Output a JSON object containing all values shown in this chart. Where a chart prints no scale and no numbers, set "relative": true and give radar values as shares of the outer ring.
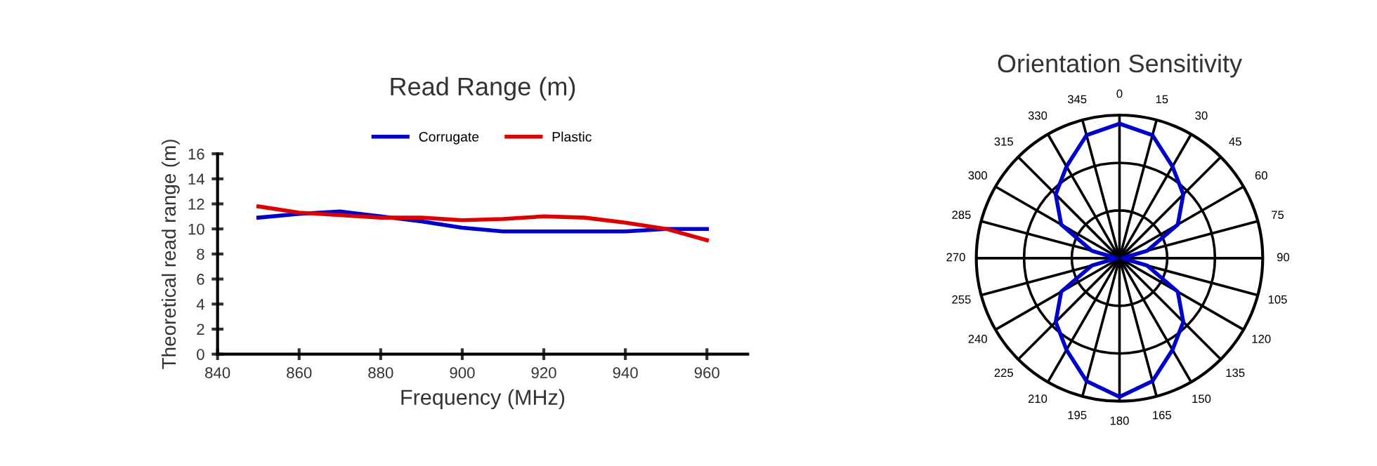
{
  "chart_data": [
    {
      "type": "line",
      "title": "Read Range (m)",
      "xlabel": "Frequency (MHz)",
      "ylabel": "Theoretical read range (m)",
      "x": [
        850,
        860,
        870,
        880,
        890,
        900,
        910,
        920,
        930,
        940,
        950,
        960
      ],
      "series": [
        {
          "name": "Corrugate",
          "color": "#0000cc",
          "values": [
            10.9,
            11.2,
            11.4,
            11.0,
            10.6,
            10.1,
            9.8,
            9.8,
            9.8,
            9.8,
            10.0,
            10.0
          ]
        },
        {
          "name": "Plastic",
          "color": "#dd0000",
          "values": [
            11.8,
            11.3,
            11.1,
            10.9,
            10.9,
            10.7,
            10.8,
            11.0,
            10.9,
            10.5,
            10.0,
            9.1
          ]
        }
      ],
      "xlim": [
        840,
        970
      ],
      "xticks": [
        840,
        860,
        880,
        900,
        920,
        940,
        960
      ],
      "ylim": [
        0,
        16
      ],
      "yticks": [
        0,
        2,
        4,
        6,
        8,
        10,
        12,
        14,
        16
      ],
      "legend": "top",
      "grid": false,
      "marker": "none",
      "line_style": "solid"
    },
    {
      "type": "radar",
      "title": "Orientation Sensitivity",
      "relative": true,
      "grid": true,
      "categories": [
        "0",
        "15",
        "30",
        "45",
        "60",
        "75",
        "90",
        "105",
        "120",
        "135",
        "150",
        "165",
        "180",
        "195",
        "210",
        "225",
        "240",
        "255",
        "270",
        "285",
        "300",
        "315",
        "330",
        "345"
      ],
      "series": [
        {
          "color": "#0000cc",
          "values": [
            0.94,
            0.89,
            0.74,
            0.63,
            0.47,
            0.2,
            0.02,
            0.2,
            0.47,
            0.63,
            0.74,
            0.89,
            0.97,
            0.89,
            0.74,
            0.63,
            0.47,
            0.2,
            0.02,
            0.2,
            0.47,
            0.63,
            0.74,
            0.89
          ]
        }
      ]
    }
  ]
}
